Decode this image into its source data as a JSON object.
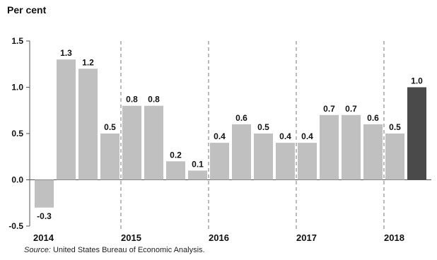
{
  "chart_data": {
    "type": "bar",
    "ylabel": "Per cent",
    "ylim": [
      -0.5,
      1.5
    ],
    "yticks": [
      "-0.5",
      "0.0",
      "0.5",
      "1.0",
      "1.5"
    ],
    "ytick_values": [
      -0.5,
      0.0,
      0.5,
      1.0,
      1.5
    ],
    "x_group_labels": [
      "2014",
      "2015",
      "2016",
      "2017",
      "2018"
    ],
    "values": [
      -0.3,
      1.3,
      1.2,
      0.5,
      0.8,
      0.8,
      0.2,
      0.1,
      0.4,
      0.6,
      0.5,
      0.4,
      0.4,
      0.7,
      0.7,
      0.6,
      0.5,
      1.0
    ],
    "value_labels": [
      "-0.3",
      "1.3",
      "1.2",
      "0.5",
      "0.8",
      "0.8",
      "0.2",
      "0.1",
      "0.4",
      "0.6",
      "0.5",
      "0.4",
      "0.4",
      "0.7",
      "0.7",
      "0.6",
      "0.5",
      "1.0"
    ],
    "highlight_index": 17,
    "bar_color": "#c0c0c0",
    "highlight_color": "#4a4a4a",
    "grid": false,
    "legend": "none"
  },
  "source": {
    "prefix": "Source:",
    "text": " United States Bureau of Economic Analysis."
  }
}
